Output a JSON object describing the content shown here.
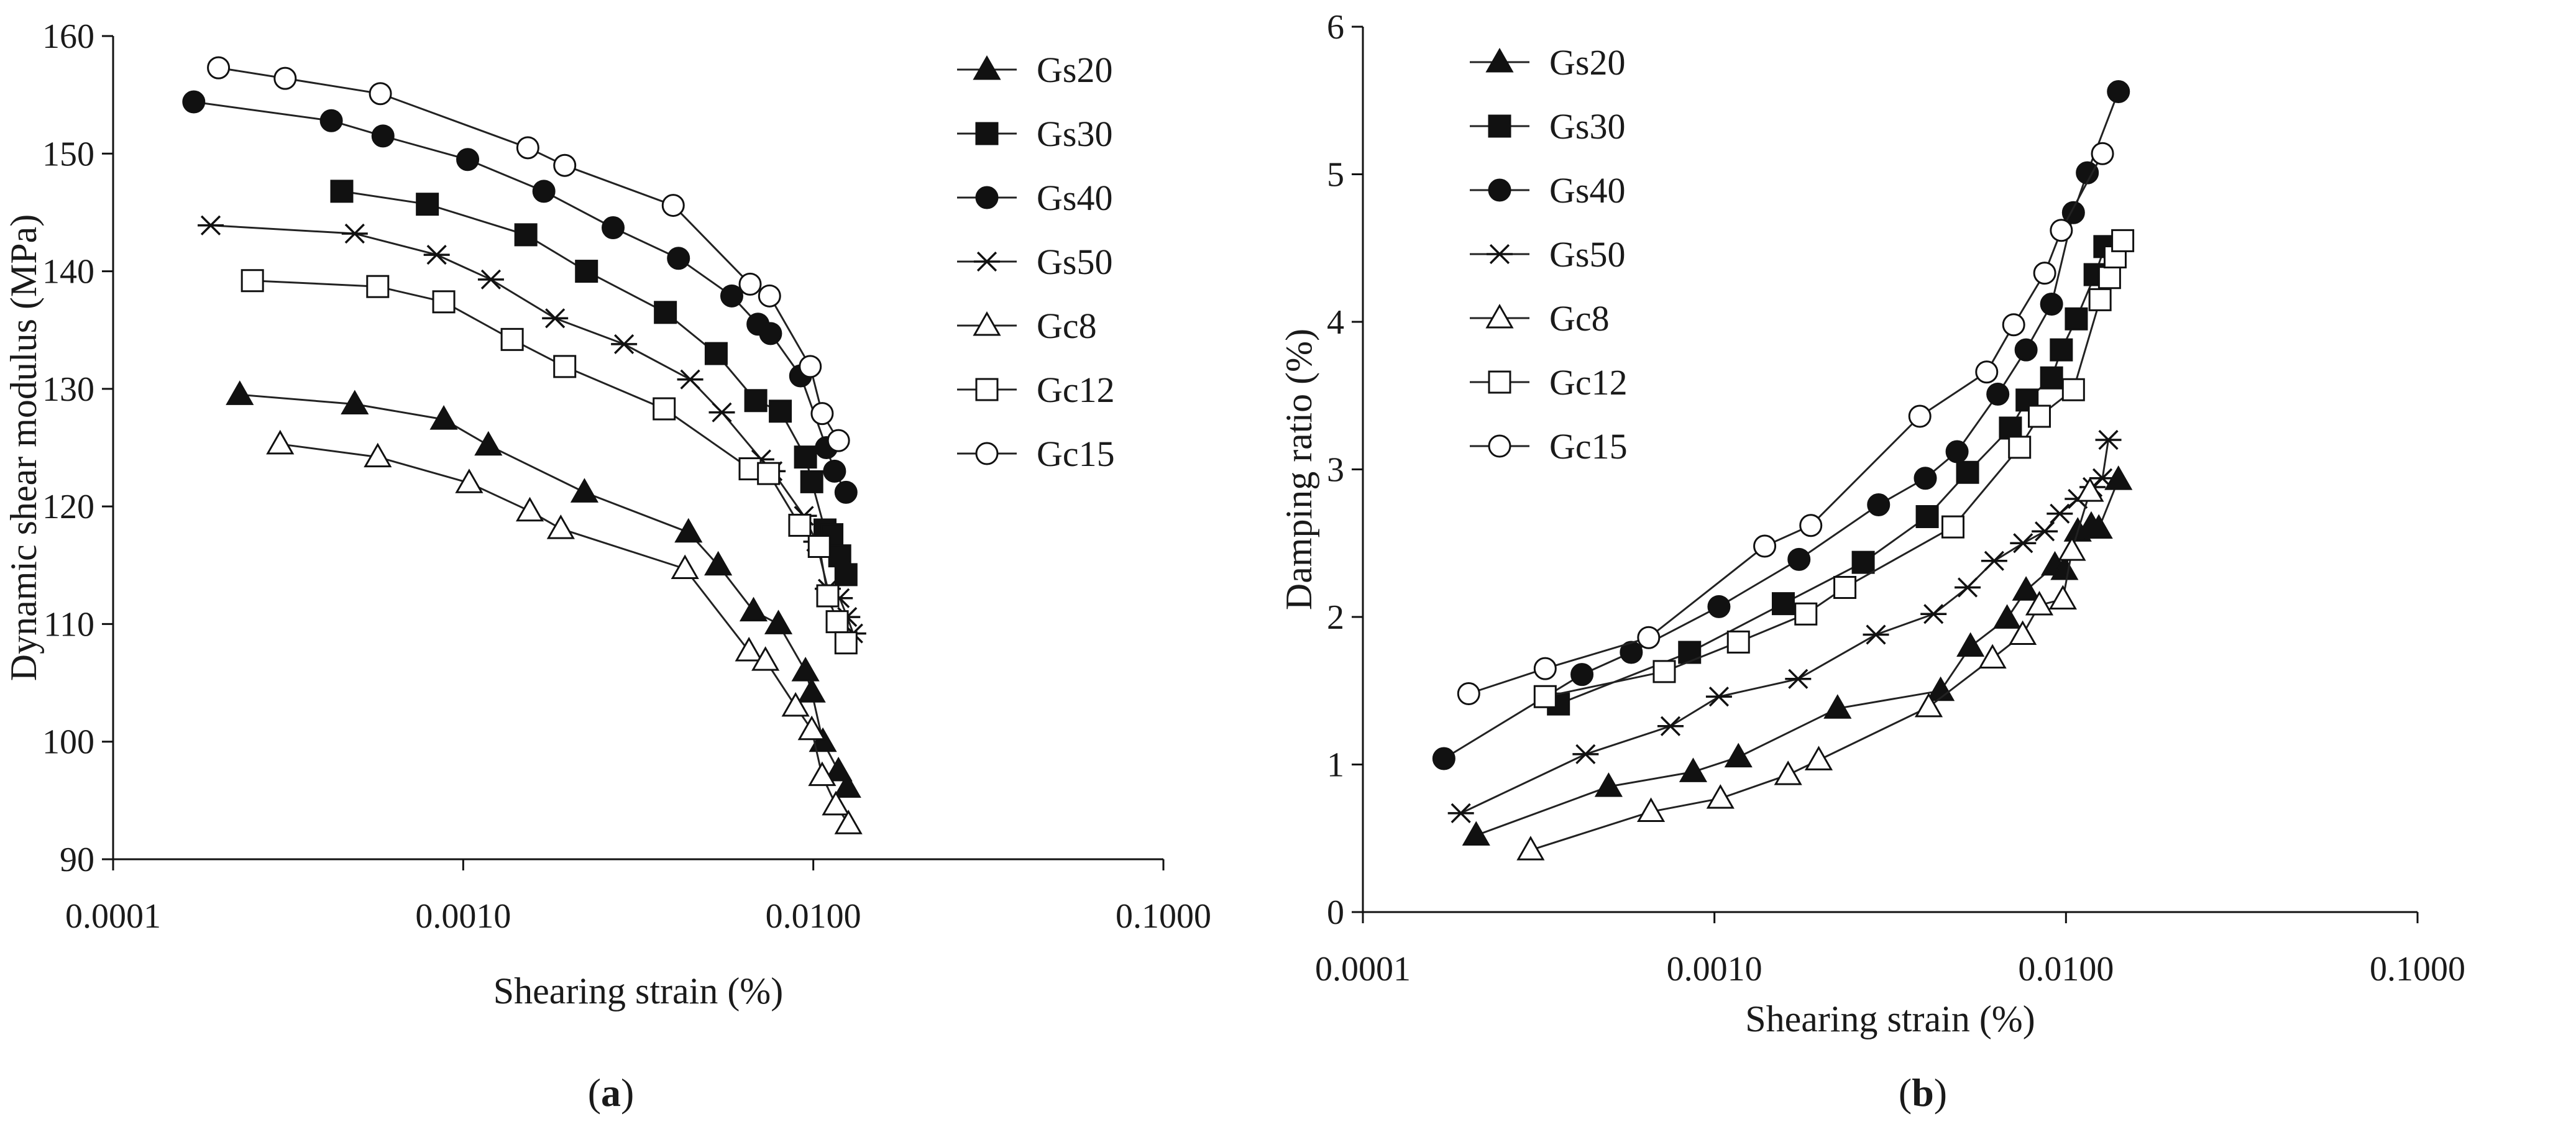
{
  "chart_data": [
    {
      "type": "line",
      "panel_label_prefix": "(",
      "panel_label_letter": "a",
      "panel_label_suffix": ")",
      "xlabel": "Shearing strain (%)",
      "ylabel": "Dynamic shear modulus (MPa)",
      "xscale": "log",
      "xlim": [
        0.0001,
        0.1
      ],
      "ylim": [
        90,
        160
      ],
      "xticks": [
        "0.0001",
        "0.0010",
        "0.0100",
        "0.1000"
      ],
      "yticks": [
        "90",
        "100",
        "110",
        "120",
        "130",
        "140",
        "150",
        "160"
      ],
      "legend_position": "top-right",
      "series": [
        {
          "name": "Gs20",
          "marker": "triangle-filled",
          "x": [
            0.00023,
            0.00049,
            0.00088,
            0.00118,
            0.00222,
            0.0044,
            0.00535,
            0.00675,
            0.00795,
            0.0095,
            0.0099,
            0.01065,
            0.0118,
            0.0125
          ],
          "y": [
            129.5,
            128.7,
            127.4,
            125.2,
            121.2,
            117.8,
            115.0,
            111.1,
            110.0,
            106.0,
            104.2,
            100.0,
            97.5,
            96.1
          ]
        },
        {
          "name": "Gs30",
          "marker": "square-filled",
          "x": [
            0.00045,
            0.00079,
            0.00151,
            0.00225,
            0.00378,
            0.00528,
            0.00685,
            0.00805,
            0.0095,
            0.0099,
            0.0108,
            0.0113,
            0.0119,
            0.0124
          ],
          "y": [
            146.8,
            145.7,
            143.1,
            140.0,
            136.5,
            133.0,
            129.0,
            128.1,
            124.2,
            122.1,
            118.0,
            117.6,
            115.8,
            114.2
          ]
        },
        {
          "name": "Gs40",
          "marker": "circle-filled",
          "x": [
            0.00017,
            0.00042,
            0.00059,
            0.00103,
            0.0017,
            0.00268,
            0.00412,
            0.00585,
            0.00695,
            0.00755,
            0.0092,
            0.0109,
            0.0115,
            0.0124
          ],
          "y": [
            154.4,
            152.8,
            151.5,
            149.5,
            146.8,
            143.7,
            141.1,
            137.9,
            135.5,
            134.7,
            131.1,
            125.0,
            123.0,
            121.2
          ]
        },
        {
          "name": "Gs50",
          "marker": "asterisk",
          "x": [
            0.00019,
            0.00049,
            0.00084,
            0.0012,
            0.00183,
            0.00288,
            0.00445,
            0.00548,
            0.0071,
            0.00765,
            0.0094,
            0.0102,
            0.011,
            0.0119,
            0.0125,
            0.013
          ],
          "y": [
            143.9,
            143.2,
            141.4,
            139.3,
            136.0,
            133.8,
            130.8,
            128.0,
            124.0,
            123.0,
            119.2,
            117.0,
            113.0,
            112.2,
            110.6,
            109.2
          ]
        },
        {
          "name": "Gc8",
          "marker": "triangle-open",
          "x": [
            0.0003,
            0.00057,
            0.00104,
            0.00155,
            0.0019,
            0.0043,
            0.00655,
            0.0073,
            0.0089,
            0.0099,
            0.0106,
            0.0116,
            0.0126
          ],
          "y": [
            125.3,
            124.2,
            122.0,
            119.6,
            118.1,
            114.7,
            107.7,
            106.9,
            103.0,
            101.0,
            97.1,
            94.6,
            93.0
          ]
        },
        {
          "name": "Gc12",
          "marker": "square-open",
          "x": [
            0.00025,
            0.00057,
            0.00088,
            0.00138,
            0.00195,
            0.00375,
            0.0066,
            0.00745,
            0.00915,
            0.0104,
            0.011,
            0.0117,
            0.0124
          ],
          "y": [
            139.2,
            138.7,
            137.4,
            134.2,
            131.9,
            128.3,
            123.2,
            122.8,
            118.4,
            116.6,
            112.4,
            110.2,
            108.4
          ]
        },
        {
          "name": "Gc15",
          "marker": "circle-open",
          "x": [
            0.0002,
            0.00031,
            0.00058,
            0.00153,
            0.00195,
            0.00398,
            0.0066,
            0.0075,
            0.0098,
            0.0106,
            0.0118
          ],
          "y": [
            157.3,
            156.4,
            155.1,
            150.5,
            149.0,
            145.6,
            138.9,
            137.9,
            131.9,
            127.9,
            125.6
          ]
        }
      ]
    },
    {
      "type": "line",
      "panel_label_prefix": "(",
      "panel_label_letter": "b",
      "panel_label_suffix": ")",
      "xlabel": "Shearing strain (%)",
      "ylabel": "Damping ratio (%)",
      "xscale": "log",
      "xlim": [
        0.0001,
        0.1
      ],
      "ylim": [
        0,
        6
      ],
      "xticks": [
        "0.0001",
        "0.0010",
        "0.0100",
        "0.1000"
      ],
      "yticks": [
        "0",
        "1",
        "2",
        "3",
        "4",
        "5",
        "6"
      ],
      "legend_position": "top-left",
      "series": [
        {
          "name": "Gs20",
          "marker": "triangle-filled",
          "x": [
            0.00021,
            0.0005,
            0.00087,
            0.00117,
            0.00224,
            0.0044,
            0.00535,
            0.0068,
            0.0077,
            0.0093,
            0.0099,
            0.0108,
            0.0118,
            0.0124,
            0.0141
          ],
          "y": [
            0.52,
            0.85,
            0.95,
            1.05,
            1.38,
            1.5,
            1.8,
            1.99,
            2.18,
            2.35,
            2.32,
            2.58,
            2.62,
            2.6,
            2.93
          ]
        },
        {
          "name": "Gs30",
          "marker": "square-filled",
          "x": [
            0.00036,
            0.00085,
            0.00157,
            0.00265,
            0.00403,
            0.00525,
            0.00695,
            0.00775,
            0.0091,
            0.0097,
            0.0107,
            0.0121,
            0.0129
          ],
          "y": [
            1.41,
            1.76,
            2.09,
            2.37,
            2.68,
            2.98,
            3.28,
            3.47,
            3.62,
            3.81,
            4.02,
            4.32,
            4.51
          ]
        },
        {
          "name": "Gs40",
          "marker": "circle-filled",
          "x": [
            0.00017,
            0.00042,
            0.00058,
            0.00103,
            0.00174,
            0.00293,
            0.00398,
            0.0049,
            0.0064,
            0.0077,
            0.0091,
            0.0105,
            0.0115,
            0.0141
          ],
          "y": [
            1.04,
            1.61,
            1.76,
            2.07,
            2.39,
            2.76,
            2.94,
            3.12,
            3.51,
            3.81,
            4.12,
            4.74,
            5.01,
            5.56
          ]
        },
        {
          "name": "Gs50",
          "marker": "asterisk",
          "x": [
            0.00019,
            0.00043,
            0.00075,
            0.00103,
            0.00173,
            0.00288,
            0.0042,
            0.00525,
            0.00625,
            0.00755,
            0.0087,
            0.0096,
            0.0108,
            0.0119,
            0.0127,
            0.0132
          ],
          "y": [
            0.67,
            1.07,
            1.26,
            1.46,
            1.58,
            1.88,
            2.02,
            2.2,
            2.38,
            2.5,
            2.58,
            2.7,
            2.8,
            2.88,
            2.94,
            3.2
          ]
        },
        {
          "name": "Gc8",
          "marker": "triangle-open",
          "x": [
            0.0003,
            0.00066,
            0.00104,
            0.00162,
            0.00198,
            0.00407,
            0.00618,
            0.00753,
            0.0084,
            0.0098,
            0.0104,
            0.0117
          ],
          "y": [
            0.42,
            0.68,
            0.77,
            0.93,
            1.03,
            1.39,
            1.72,
            1.88,
            2.08,
            2.12,
            2.45,
            2.85
          ]
        },
        {
          "name": "Gc12",
          "marker": "square-open",
          "x": [
            0.00033,
            0.00072,
            0.00117,
            0.00182,
            0.00235,
            0.00477,
            0.00738,
            0.0084,
            0.0105,
            0.0125,
            0.0133,
            0.0138,
            0.0145
          ],
          "y": [
            1.46,
            1.63,
            1.83,
            2.02,
            2.2,
            2.61,
            3.15,
            3.36,
            3.54,
            4.15,
            4.3,
            4.44,
            4.55
          ]
        },
        {
          "name": "Gc15",
          "marker": "circle-open",
          "x": [
            0.0002,
            0.00033,
            0.00065,
            0.00139,
            0.00188,
            0.00384,
            0.00595,
            0.0071,
            0.0087,
            0.0097,
            0.0127
          ],
          "y": [
            1.48,
            1.65,
            1.86,
            2.48,
            2.62,
            3.36,
            3.66,
            3.98,
            4.33,
            4.62,
            5.14
          ]
        }
      ]
    }
  ]
}
